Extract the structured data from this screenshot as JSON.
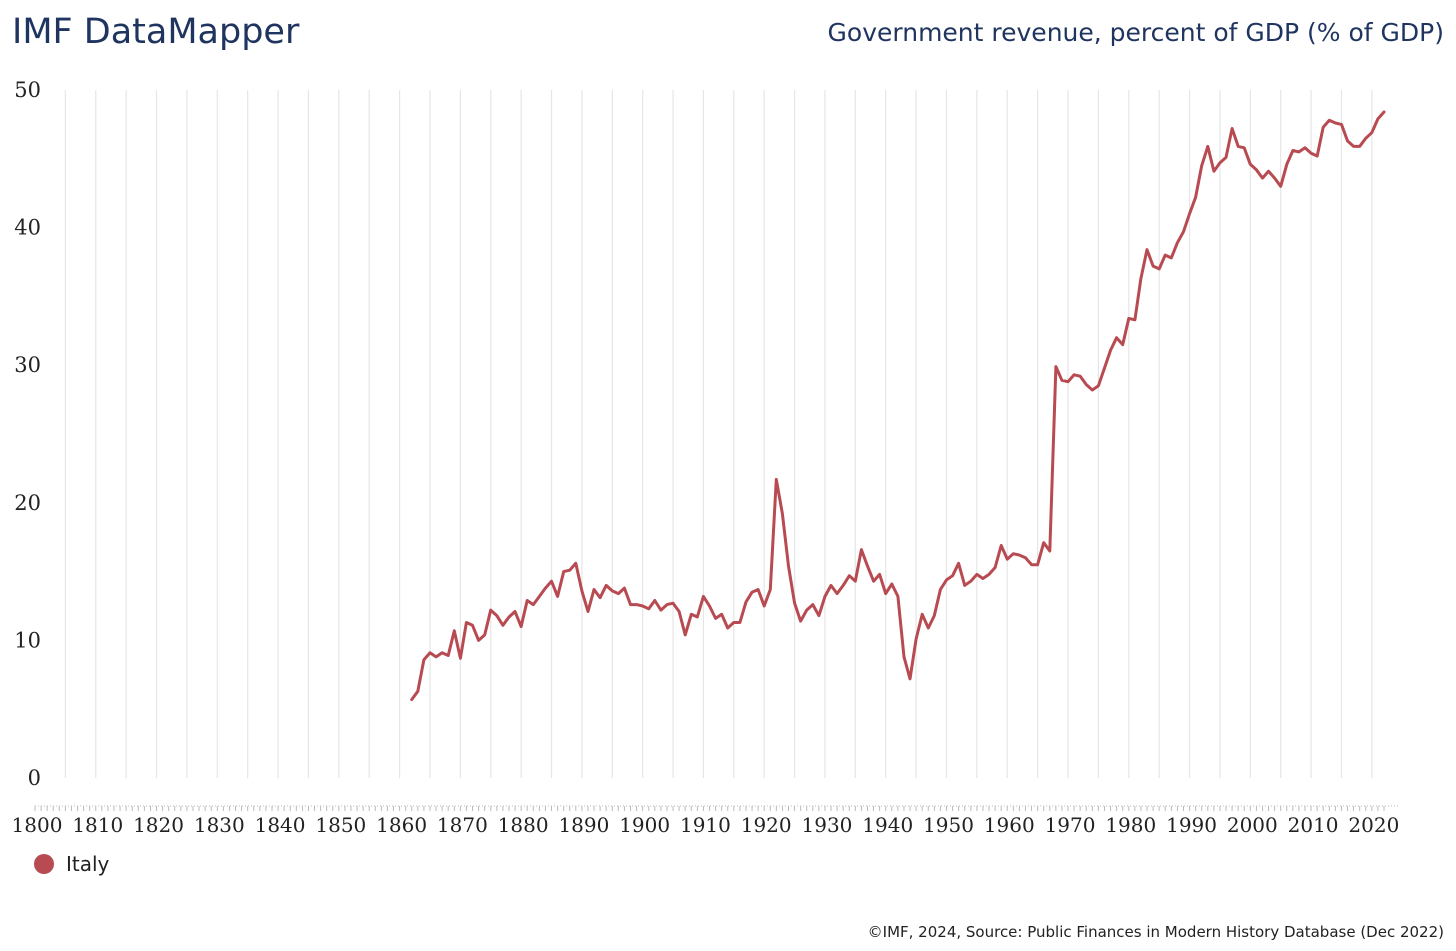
{
  "header": {
    "brand": "IMF DataMapper",
    "indicator": "Government revenue, percent of GDP (% of GDP)"
  },
  "chart_data": {
    "type": "line",
    "title": "Government revenue, percent of GDP (% of GDP)",
    "xlabel": "",
    "ylabel": "",
    "xlim": [
      1800,
      2022
    ],
    "ylim": [
      0,
      50
    ],
    "yticks": [
      0,
      10,
      20,
      30,
      40,
      50
    ],
    "xticks": [
      1800,
      1810,
      1820,
      1830,
      1840,
      1850,
      1860,
      1870,
      1880,
      1890,
      1900,
      1910,
      1920,
      1930,
      1940,
      1950,
      1960,
      1970,
      1980,
      1990,
      2000,
      2010,
      2020
    ],
    "grid": "vertical",
    "legend_position": "bottom-left",
    "series": [
      {
        "name": "Italy",
        "color": "#b84a52",
        "x": [
          1862,
          1863,
          1864,
          1865,
          1866,
          1867,
          1868,
          1869,
          1870,
          1871,
          1872,
          1873,
          1874,
          1875,
          1876,
          1877,
          1878,
          1879,
          1880,
          1881,
          1882,
          1883,
          1884,
          1885,
          1886,
          1887,
          1888,
          1889,
          1890,
          1891,
          1892,
          1893,
          1894,
          1895,
          1896,
          1897,
          1898,
          1899,
          1900,
          1901,
          1902,
          1903,
          1904,
          1905,
          1906,
          1907,
          1908,
          1909,
          1910,
          1911,
          1912,
          1913,
          1914,
          1915,
          1916,
          1917,
          1918,
          1919,
          1920,
          1921,
          1922,
          1923,
          1924,
          1925,
          1926,
          1927,
          1928,
          1929,
          1930,
          1931,
          1932,
          1933,
          1934,
          1935,
          1936,
          1937,
          1938,
          1939,
          1940,
          1941,
          1942,
          1943,
          1944,
          1945,
          1946,
          1947,
          1948,
          1949,
          1950,
          1951,
          1952,
          1953,
          1954,
          1955,
          1956,
          1957,
          1958,
          1959,
          1960,
          1961,
          1962,
          1963,
          1964,
          1965,
          1966,
          1967,
          1968,
          1969,
          1970,
          1971,
          1972,
          1973,
          1974,
          1975,
          1976,
          1977,
          1978,
          1979,
          1980,
          1981,
          1982,
          1983,
          1984,
          1985,
          1986,
          1987,
          1988,
          1989,
          1990,
          1991,
          1992,
          1993,
          1994,
          1995,
          1996,
          1997,
          1998,
          1999,
          2000,
          2001,
          2002,
          2003,
          2004,
          2005,
          2006,
          2007,
          2008,
          2009,
          2010,
          2011,
          2012,
          2013,
          2014,
          2015,
          2016,
          2017,
          2018,
          2019,
          2020,
          2021,
          2022
        ],
        "values": [
          5.7,
          6.3,
          8.6,
          9.1,
          8.8,
          9.1,
          8.9,
          10.7,
          8.7,
          11.3,
          11.1,
          10.0,
          10.4,
          12.2,
          11.8,
          11.1,
          11.7,
          12.1,
          11.0,
          12.9,
          12.6,
          13.2,
          13.8,
          14.3,
          13.2,
          15.0,
          15.1,
          15.6,
          13.6,
          12.1,
          13.7,
          13.1,
          14.0,
          13.6,
          13.4,
          13.8,
          12.6,
          12.6,
          12.5,
          12.3,
          12.9,
          12.2,
          12.6,
          12.7,
          12.1,
          10.4,
          11.9,
          11.7,
          13.2,
          12.5,
          11.6,
          11.9,
          10.9,
          11.3,
          11.3,
          12.8,
          13.5,
          13.7,
          12.5,
          13.7,
          21.7,
          19.2,
          15.4,
          12.7,
          11.4,
          12.2,
          12.6,
          11.8,
          13.2,
          14.0,
          13.4,
          14.0,
          14.7,
          14.3,
          16.6,
          15.4,
          14.3,
          14.8,
          13.4,
          14.1,
          13.2,
          8.8,
          7.2,
          10.1,
          11.9,
          10.9,
          11.8,
          13.7,
          14.4,
          14.7,
          15.6,
          14.0,
          14.3,
          14.8,
          14.5,
          14.8,
          15.3,
          16.9,
          15.9,
          16.3,
          16.2,
          16.0,
          15.5,
          15.5,
          17.1,
          16.5,
          29.9,
          28.9,
          28.8,
          29.3,
          29.2,
          28.6,
          28.2,
          28.5,
          29.8,
          31.1,
          32.0,
          31.5,
          33.4,
          33.3,
          36.3,
          38.4,
          37.2,
          37.0,
          38.0,
          37.8,
          38.9,
          39.7,
          41.0,
          42.2,
          44.5,
          45.9,
          44.1,
          44.7,
          45.1,
          47.2,
          45.9,
          45.8,
          44.6,
          44.2,
          43.6,
          44.1,
          43.6,
          43.0,
          44.6,
          45.6,
          45.5,
          45.8,
          45.4,
          45.2,
          47.3,
          47.8,
          47.6,
          47.5,
          46.3,
          45.9,
          45.9,
          46.5,
          46.9,
          47.9,
          48.4
        ]
      }
    ]
  },
  "legend": {
    "label": "Italy",
    "color": "#b84a52"
  },
  "footer": {
    "source": "©IMF, 2024, Source: Public Finances in Modern History Database (Dec 2022)"
  }
}
